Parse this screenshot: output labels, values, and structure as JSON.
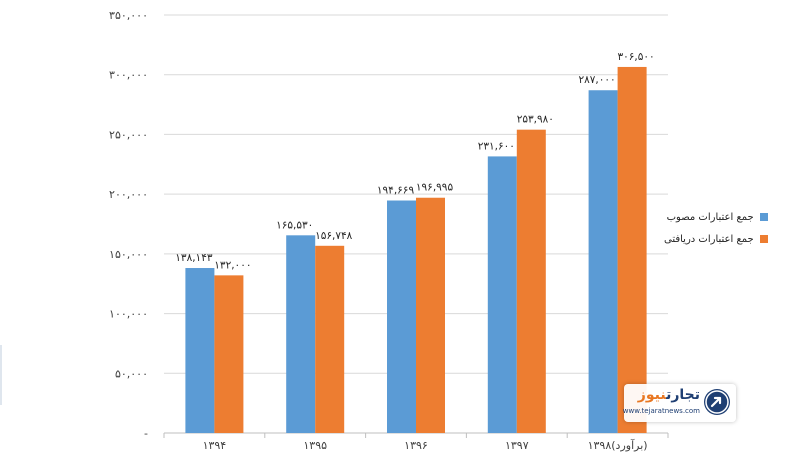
{
  "chart_data": {
    "type": "bar",
    "categories": [
      "۱۳۹۴",
      "۱۳۹۵",
      "۱۳۹۶",
      "۱۳۹۷",
      "۱۳۹۸(برآورد)"
    ],
    "series": [
      {
        "name": "جمع اعتبارات مصوب",
        "color": "#5b9bd5",
        "values": [
          138143,
          165530,
          194669,
          231600,
          287000
        ],
        "labels": [
          "۱۳۸,۱۴۳",
          "۱۶۵,۵۳۰",
          "۱۹۴,۶۶۹",
          "۲۳۱,۶۰۰",
          "۲۸۷,۰۰۰"
        ]
      },
      {
        "name": "جمع اعتبارات دریافتی",
        "color": "#ed7d31",
        "values": [
          132000,
          156748,
          196995,
          253980,
          306500
        ],
        "labels": [
          "۱۳۲,۰۰۰",
          "۱۵۶,۷۴۸",
          "۱۹۶,۹۹۵",
          "۲۵۳,۹۸۰",
          "۳۰۶,۵۰۰"
        ]
      }
    ],
    "ylim": [
      0,
      350000
    ],
    "yticks": [
      0,
      50000,
      100000,
      150000,
      200000,
      250000,
      300000,
      350000
    ],
    "ytick_labels": [
      "-",
      "۵۰,۰۰۰",
      "۱۰۰,۰۰۰",
      "۱۵۰,۰۰۰",
      "۲۰۰,۰۰۰",
      "۲۵۰,۰۰۰",
      "۳۰۰,۰۰۰",
      "۳۵۰,۰۰۰"
    ],
    "grid": true,
    "legend": "right",
    "title": "",
    "xlabel": "",
    "ylabel": ""
  },
  "watermark": {
    "title_main": "تجارت",
    "title_accent": "نیوز",
    "url": "www.tejaratnews.com",
    "icon": "tejaratnews-logo-icon"
  }
}
